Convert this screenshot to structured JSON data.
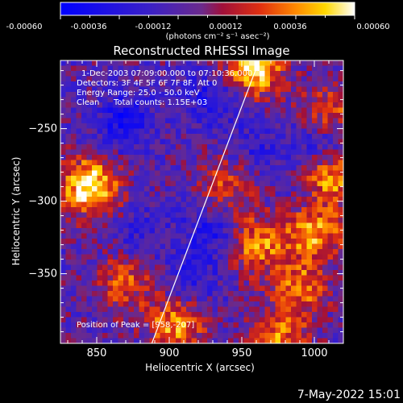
{
  "colorbar": {
    "ticks": [
      "-0.00060",
      "-0.00036",
      "-0.00012",
      "0.00012",
      "0.00036",
      "0.00060"
    ],
    "units": "(photons cm⁻² s⁻¹ asec⁻²)",
    "range": [
      -0.0006,
      0.0006
    ]
  },
  "image_info": {
    "time_range": "1-Dec-2003 07:09:00.000 to 07:10:36.000",
    "detectors": "Detectors: 3F 4F 5F 6F 7F 8F, Att 0",
    "energy_range": "Energy Range: 25.0 - 50.0 keV",
    "method": "Clean",
    "total_counts": "Total counts: 1.15E+03",
    "peak_position": "Position of Peak = [958,-207]"
  },
  "footer": {
    "date": "7-May-2022 15:01"
  },
  "colors": {
    "background": "#000000",
    "limb_line": "#ffffff"
  },
  "chart_data": {
    "type": "heatmap",
    "title": "Reconstructed RHESSI Image",
    "xlabel": "Heliocentric X (arcsec)",
    "ylabel": "Heliocentric Y (arcsec)",
    "xlim": [
      825,
      1020
    ],
    "ylim": [
      -398,
      -203
    ],
    "x_ticks": [
      850,
      900,
      950,
      1000
    ],
    "y_ticks": [
      -250,
      -300,
      -350
    ],
    "colormap": "RHESSI blue-purple-red-yellow-white",
    "peak": [
      958,
      -207
    ],
    "solar_limb": [
      [
        888,
        -398
      ],
      [
        962,
        -203
      ]
    ],
    "bright_regions": [
      {
        "x": 845,
        "y": -290,
        "value": 0.0006
      },
      {
        "x": 958,
        "y": -207,
        "value": 0.0006
      },
      {
        "x": 1010,
        "y": -285,
        "value": 0.0005
      },
      {
        "x": 1000,
        "y": -320,
        "value": 0.00045
      },
      {
        "x": 960,
        "y": -330,
        "value": 0.00035
      },
      {
        "x": 905,
        "y": -385,
        "value": 0.0004
      },
      {
        "x": 990,
        "y": -360,
        "value": 0.0003
      },
      {
        "x": 1010,
        "y": -240,
        "value": 0.0003
      },
      {
        "x": 870,
        "y": -355,
        "value": 0.00025
      },
      {
        "x": 940,
        "y": -290,
        "value": 0.00025
      },
      {
        "x": 975,
        "y": -395,
        "value": 0.0003
      }
    ],
    "dark_regions": [
      {
        "x": 870,
        "y": -245,
        "value": -0.00045
      },
      {
        "x": 930,
        "y": -230,
        "value": -0.0004
      },
      {
        "x": 1005,
        "y": -260,
        "value": -0.00045
      },
      {
        "x": 930,
        "y": -320,
        "value": -0.0004
      },
      {
        "x": 880,
        "y": -325,
        "value": -0.0003
      },
      {
        "x": 1000,
        "y": -300,
        "value": -0.00035
      },
      {
        "x": 960,
        "y": -265,
        "value": -0.0003
      },
      {
        "x": 915,
        "y": -355,
        "value": -0.00035
      }
    ],
    "background_level": -0.00012
  }
}
